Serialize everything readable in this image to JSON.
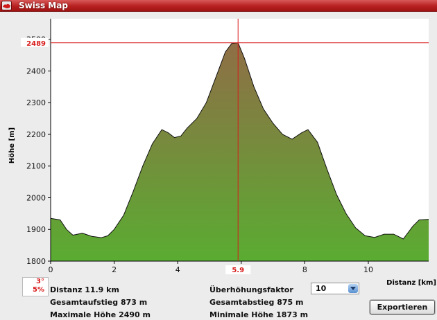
{
  "window": {
    "title": "Swiss Map"
  },
  "chart_data": {
    "type": "area",
    "ylabel": "Höhe [m]",
    "xlabel": "Distanz [km]",
    "xlim": [
      0,
      11.9
    ],
    "ylim": [
      1800,
      2565
    ],
    "xticks": [
      0,
      2,
      4,
      6,
      8,
      10
    ],
    "yticks": [
      1800,
      1900,
      2000,
      2100,
      2200,
      2300,
      2400,
      2500
    ],
    "grid": false,
    "cursor": {
      "x": 5.9,
      "y": 2489,
      "x_label": "5.9",
      "y_label": "2489"
    },
    "x": [
      0,
      0.3,
      0.5,
      0.7,
      1.0,
      1.3,
      1.6,
      1.8,
      2.0,
      2.3,
      2.6,
      2.9,
      3.2,
      3.5,
      3.7,
      3.9,
      4.1,
      4.3,
      4.6,
      4.9,
      5.2,
      5.5,
      5.7,
      5.9,
      6.1,
      6.4,
      6.7,
      7.0,
      7.3,
      7.6,
      7.9,
      8.1,
      8.4,
      8.7,
      9.0,
      9.3,
      9.6,
      9.9,
      10.2,
      10.5,
      10.8,
      11.1,
      11.4,
      11.6,
      11.9
    ],
    "y": [
      1935,
      1930,
      1900,
      1882,
      1888,
      1878,
      1874,
      1880,
      1900,
      1945,
      2020,
      2100,
      2170,
      2215,
      2205,
      2190,
      2195,
      2220,
      2250,
      2300,
      2380,
      2460,
      2487,
      2489,
      2440,
      2350,
      2280,
      2235,
      2200,
      2185,
      2205,
      2215,
      2175,
      2090,
      2010,
      1950,
      1905,
      1880,
      1875,
      1885,
      1885,
      1870,
      1910,
      1930,
      1932
    ]
  },
  "slope": {
    "degrees": "3°",
    "percent": "5%"
  },
  "stats": {
    "distanz": "Distanz 11.9 km",
    "aufstieg": "Gesamtaufstieg 873 m",
    "max_hoehe": "Maximale Höhe 2490 m",
    "faktor_label": "Überhöhungsfaktor",
    "abstieg": "Gesamtabstieg 875 m",
    "min_hoehe": "Minimale Höhe 1873 m"
  },
  "faktor_select": {
    "value": "10"
  },
  "export_button": {
    "label": "Exportieren"
  },
  "colors": {
    "profile_top": "#8f6e46",
    "profile_bottom": "#5aac32",
    "cursor": "#d81a1a",
    "title_bar": "#c02828"
  }
}
